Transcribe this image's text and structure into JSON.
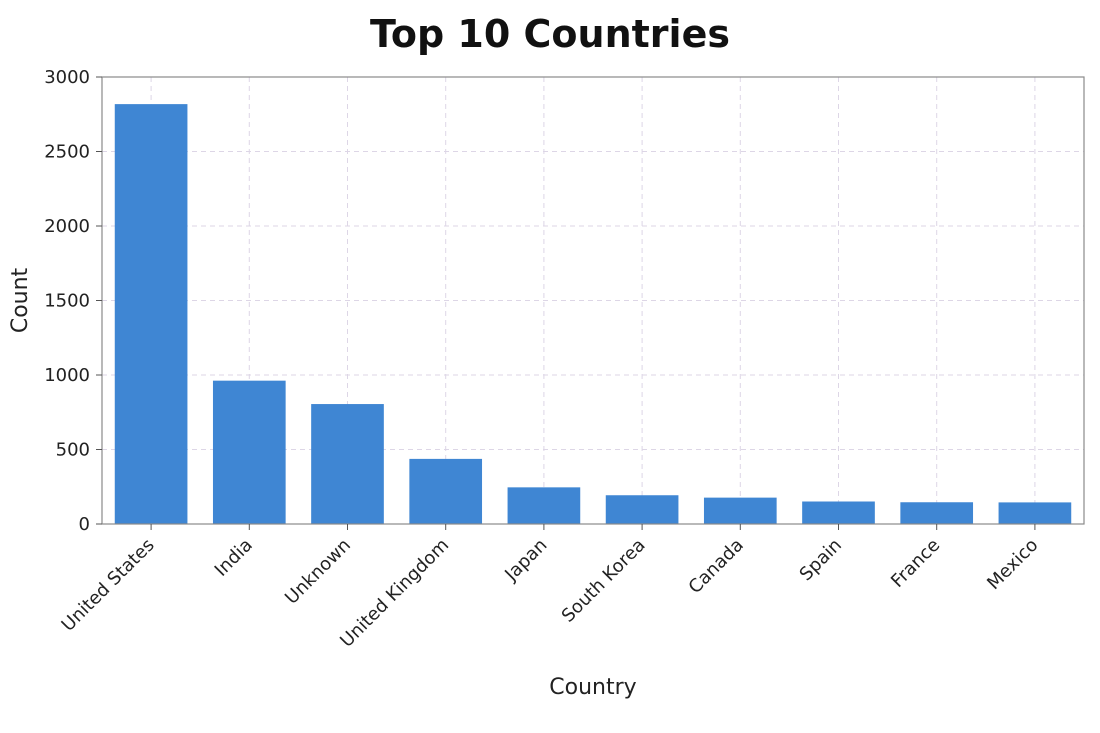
{
  "chart_data": {
    "type": "bar",
    "title": "Top 10 Countries",
    "xlabel": "Country",
    "ylabel": "Count",
    "categories": [
      "United States",
      "India",
      "Unknown",
      "United Kingdom",
      "Japan",
      "South Korea",
      "Canada",
      "Spain",
      "France",
      "Mexico"
    ],
    "values": [
      2818,
      962,
      805,
      437,
      246,
      193,
      177,
      151,
      146,
      145
    ],
    "ylim": [
      0,
      3000
    ],
    "yticks": [
      0,
      500,
      1000,
      1500,
      2000,
      2500,
      3000
    ],
    "grid": true,
    "bar_color": "#3f86d3"
  }
}
